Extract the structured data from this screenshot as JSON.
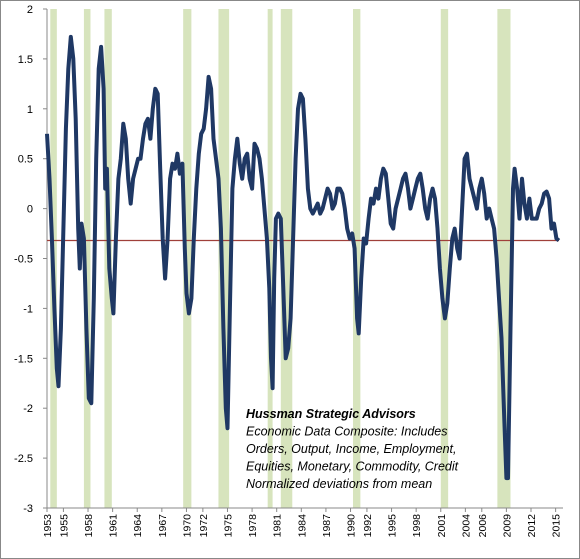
{
  "chart_data": {
    "type": "line",
    "annotation": [
      "Hussman Strategic Advisors",
      "Economic Data Composite: Includes",
      "Orders, Output, Income, Employment,",
      "Equities, Monetary, Commodity, Credit",
      "Normalized deviations from mean"
    ],
    "color": "#1f3864",
    "x": [
      1953.0,
      1953.3,
      1953.6,
      1953.9,
      1954.2,
      1954.4,
      1954.7,
      1955.0,
      1955.3,
      1955.6,
      1955.9,
      1956.2,
      1956.5,
      1956.8,
      1957.0,
      1957.2,
      1957.5,
      1957.8,
      1958.1,
      1958.4,
      1958.7,
      1959.0,
      1959.3,
      1959.6,
      1959.9,
      1960.1,
      1960.3,
      1960.6,
      1960.9,
      1961.1,
      1961.4,
      1961.7,
      1962.0,
      1962.3,
      1962.6,
      1962.9,
      1963.2,
      1963.5,
      1963.8,
      1964.1,
      1964.4,
      1964.7,
      1965.0,
      1965.3,
      1965.6,
      1965.9,
      1966.2,
      1966.5,
      1966.8,
      1967.1,
      1967.4,
      1967.7,
      1968.0,
      1968.3,
      1968.6,
      1968.9,
      1969.2,
      1969.5,
      1969.8,
      1970.0,
      1970.3,
      1970.6,
      1970.9,
      1971.2,
      1971.5,
      1971.8,
      1972.1,
      1972.4,
      1972.7,
      1973.0,
      1973.3,
      1973.6,
      1973.9,
      1974.2,
      1974.5,
      1974.8,
      1975.0,
      1975.3,
      1975.6,
      1975.9,
      1976.2,
      1976.5,
      1976.8,
      1977.1,
      1977.4,
      1977.7,
      1978.0,
      1978.3,
      1978.6,
      1978.9,
      1979.2,
      1979.5,
      1979.8,
      1980.1,
      1980.3,
      1980.5,
      1980.7,
      1980.9,
      1981.2,
      1981.5,
      1981.8,
      1982.1,
      1982.4,
      1982.7,
      1983.0,
      1983.3,
      1983.6,
      1983.9,
      1984.2,
      1984.5,
      1984.8,
      1985.1,
      1985.4,
      1985.7,
      1986.0,
      1986.3,
      1986.6,
      1986.9,
      1987.2,
      1987.5,
      1987.8,
      1988.1,
      1988.4,
      1988.7,
      1989.0,
      1989.3,
      1989.6,
      1989.9,
      1990.2,
      1990.5,
      1990.8,
      1991.0,
      1991.3,
      1991.6,
      1991.9,
      1992.2,
      1992.5,
      1992.8,
      1993.1,
      1993.4,
      1993.7,
      1994.0,
      1994.3,
      1994.6,
      1994.9,
      1995.2,
      1995.5,
      1995.8,
      1996.1,
      1996.4,
      1996.7,
      1997.0,
      1997.3,
      1997.6,
      1997.9,
      1998.2,
      1998.5,
      1998.8,
      1999.1,
      1999.4,
      1999.7,
      2000.0,
      2000.3,
      2000.6,
      2000.9,
      2001.2,
      2001.5,
      2001.8,
      2002.1,
      2002.4,
      2002.7,
      2003.0,
      2003.3,
      2003.6,
      2003.9,
      2004.2,
      2004.5,
      2004.8,
      2005.1,
      2005.4,
      2005.7,
      2006.0,
      2006.3,
      2006.6,
      2006.9,
      2007.2,
      2007.5,
      2007.8,
      2008.1,
      2008.4,
      2008.7,
      2009.0,
      2009.2,
      2009.5,
      2009.8,
      2010.0,
      2010.3,
      2010.6,
      2010.9,
      2011.2,
      2011.5,
      2011.8,
      2012.1,
      2012.4,
      2012.7,
      2013.0,
      2013.3,
      2013.6,
      2013.9,
      2014.2,
      2014.5,
      2014.8,
      2015.1,
      2015.4
    ],
    "values": [
      0.75,
      0.3,
      -0.3,
      -1.0,
      -1.6,
      -1.78,
      -1.2,
      -0.2,
      0.8,
      1.4,
      1.72,
      1.5,
      0.9,
      -0.2,
      -0.6,
      -0.15,
      -0.3,
      -1.2,
      -1.9,
      -1.95,
      -0.9,
      0.5,
      1.4,
      1.62,
      1.2,
      0.2,
      0.4,
      -0.6,
      -0.9,
      -1.05,
      -0.3,
      0.3,
      0.5,
      0.85,
      0.7,
      0.3,
      0.05,
      0.3,
      0.4,
      0.5,
      0.5,
      0.7,
      0.85,
      0.9,
      0.7,
      1.0,
      1.2,
      1.15,
      0.4,
      -0.3,
      -0.7,
      -0.3,
      0.3,
      0.45,
      0.4,
      0.55,
      0.35,
      0.45,
      -0.4,
      -0.85,
      -1.05,
      -0.9,
      -0.3,
      0.2,
      0.55,
      0.75,
      0.8,
      1.0,
      1.32,
      1.2,
      0.7,
      0.5,
      0.3,
      -0.2,
      -1.2,
      -2.0,
      -2.2,
      -1.0,
      0.2,
      0.5,
      0.7,
      0.45,
      0.3,
      0.5,
      0.55,
      0.3,
      0.2,
      0.65,
      0.6,
      0.5,
      0.3,
      0.0,
      -0.3,
      -0.8,
      -1.5,
      -1.8,
      -0.7,
      -0.1,
      -0.05,
      -0.1,
      -0.8,
      -1.5,
      -1.4,
      -1.1,
      -0.3,
      0.5,
      1.0,
      1.15,
      1.1,
      0.7,
      0.2,
      0.0,
      -0.05,
      0.0,
      0.05,
      -0.05,
      0.0,
      0.1,
      0.2,
      0.15,
      0.0,
      0.05,
      0.2,
      0.2,
      0.15,
      0.0,
      -0.2,
      -0.3,
      -0.25,
      -0.4,
      -1.1,
      -1.25,
      -0.7,
      -0.3,
      -0.35,
      -0.1,
      0.1,
      0.05,
      0.2,
      0.1,
      0.3,
      0.4,
      0.35,
      0.1,
      -0.15,
      -0.2,
      0.0,
      0.1,
      0.2,
      0.3,
      0.35,
      0.2,
      0.0,
      0.1,
      0.2,
      0.3,
      0.35,
      0.2,
      0.0,
      -0.1,
      0.1,
      0.2,
      0.1,
      -0.2,
      -0.6,
      -0.9,
      -1.1,
      -0.95,
      -0.6,
      -0.3,
      -0.2,
      -0.4,
      -0.5,
      0.0,
      0.5,
      0.55,
      0.3,
      0.2,
      0.1,
      0.0,
      0.2,
      0.3,
      0.15,
      -0.1,
      0.0,
      -0.1,
      -0.2,
      -0.5,
      -0.9,
      -1.3,
      -2.0,
      -2.7,
      -2.7,
      -1.2,
      0.2,
      0.4,
      0.2,
      -0.1,
      0.3,
      0.05,
      -0.1,
      0.1,
      -0.1,
      -0.1,
      -0.1,
      0.0,
      0.05,
      0.15,
      0.17,
      0.1,
      -0.2,
      -0.15,
      -0.3,
      -0.32
    ],
    "shaded_periods": [
      [
        1953.4,
        1954.2
      ],
      [
        1957.5,
        1958.3
      ],
      [
        1960.0,
        1960.9
      ],
      [
        1969.6,
        1970.6
      ],
      [
        1973.9,
        1975.2
      ],
      [
        1979.9,
        1980.5
      ],
      [
        1981.5,
        1982.9
      ],
      [
        1990.3,
        1991.2
      ],
      [
        2001.0,
        2001.9
      ],
      [
        2007.9,
        2009.5
      ]
    ],
    "shade_color": "#d7e4bd",
    "reference_line": -0.32,
    "reference_color": "#a0403a",
    "xlim": [
      1953,
      2015.9
    ],
    "ylim": [
      -3,
      2
    ],
    "xticks": [
      1953,
      1955,
      1958,
      1961,
      1964,
      1967,
      1970,
      1972,
      1975,
      1978,
      1981,
      1984,
      1987,
      1990,
      1992,
      1995,
      1998,
      2001,
      2004,
      2006,
      2009,
      2012,
      2015
    ],
    "yticks": [
      2,
      1.5,
      1,
      0.5,
      0,
      -0.5,
      -1,
      -1.5,
      -2,
      -2.5,
      -3
    ]
  }
}
